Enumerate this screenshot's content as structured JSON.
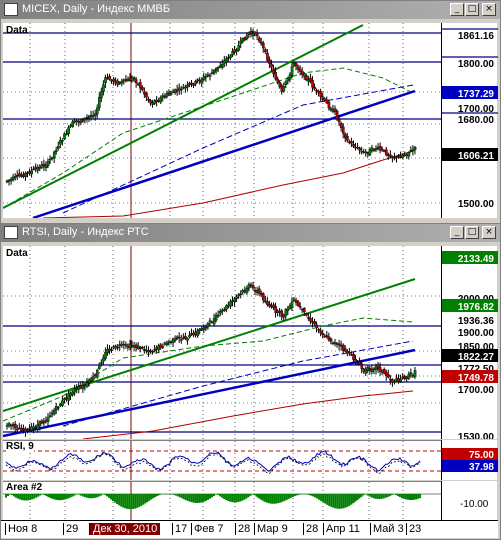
{
  "micex": {
    "title": "MICEX, Daily - Индекс ММВБ",
    "data_label": "Data",
    "axis_labels": [
      "1861.16",
      "1800.00",
      "1737.29",
      "1700.00",
      "1680.00",
      "1606.21",
      "1500.00"
    ],
    "close_price": "1606.21",
    "buttons": {
      "minimize": "_",
      "maximize": "□",
      "close": "×"
    }
  },
  "rtsi": {
    "title": "RTSI, Daily - Индекс РТС",
    "data_label": "Data",
    "axis_labels": [
      "2133.49",
      "2000.00",
      "1976.82",
      "1936.36",
      "1900.00",
      "1850.00",
      "1822.27",
      "1772.50",
      "1749.78",
      "1700.00",
      "1530.00"
    ],
    "close_price": "1822.27",
    "buttons": {
      "minimize": "_",
      "maximize": "□",
      "close": "×"
    }
  },
  "rsi": {
    "label": "RSI, 9",
    "axis_labels": [
      "75.00",
      "37.98"
    ]
  },
  "area": {
    "label": "Area #2",
    "axis_label": "-10.00"
  },
  "dates": [
    "Ноя 8",
    "29",
    "Дек 30, 2010",
    "17",
    "Фев 7",
    "28",
    "Мар 9",
    "28",
    "Апр 11",
    "Май 3",
    "23"
  ],
  "colors": {
    "bull": "#008000",
    "bear": "#c00000",
    "trend_green": "#008000",
    "trend_blue": "#0000c0",
    "ma_red": "#b00000",
    "hline": "#000080",
    "highlight_date": "#800000",
    "cursor": "#800000"
  }
}
